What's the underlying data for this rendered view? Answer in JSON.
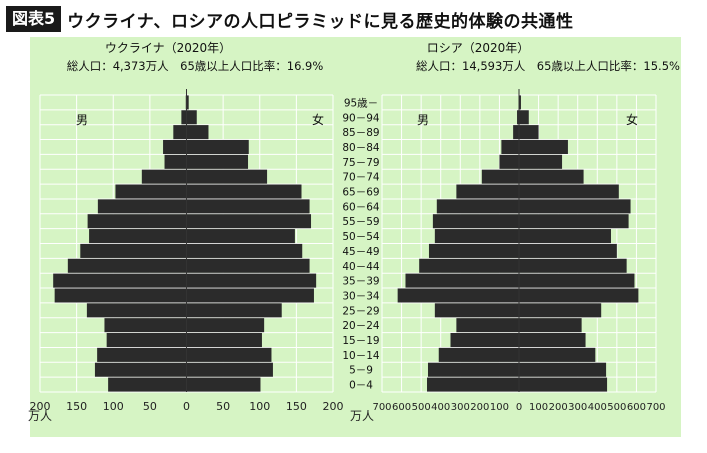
{
  "figure": {
    "badge": "図表5",
    "title": "ウクライナ、ロシアの人口ピラミッドに見る歴史的体験の共通性"
  },
  "colors": {
    "background_panel": "#d6f4c4",
    "bar": "#2b2b2b",
    "grid": "#ffffff",
    "badge_bg": "#1a1a1a"
  },
  "chart_data": [
    {
      "type": "bar",
      "orientation": "horizontal-pyramid",
      "title": "ウクライナ（2020年）",
      "subtitle": "総人口：4,373万人　65歳以上人口比率：16.9%",
      "xlabel": "万人",
      "male_label": "男",
      "female_label": "女",
      "xlim": [
        -200,
        200
      ],
      "xticks": [
        "200",
        "150",
        "100",
        "50",
        "0",
        "50",
        "100",
        "150",
        "200"
      ],
      "grid": true,
      "categories": [
        "0－4",
        "5－9",
        "10－14",
        "15－19",
        "20－24",
        "25－29",
        "30－34",
        "35－39",
        "40－44",
        "45－49",
        "50－54",
        "55－59",
        "60－64",
        "65－69",
        "70－74",
        "75－79",
        "80－84",
        "85－89",
        "90－94",
        "95歳－"
      ],
      "series": [
        {
          "name": "男",
          "values": [
            107,
            125,
            122,
            109,
            112,
            136,
            180,
            182,
            162,
            145,
            133,
            135,
            121,
            97,
            61,
            30,
            32,
            18,
            7,
            1
          ]
        },
        {
          "name": "女",
          "values": [
            101,
            118,
            116,
            103,
            106,
            130,
            174,
            177,
            168,
            158,
            148,
            170,
            168,
            157,
            110,
            84,
            85,
            30,
            14,
            3
          ]
        }
      ]
    },
    {
      "type": "bar",
      "orientation": "horizontal-pyramid",
      "title": "ロシア（2020年）",
      "subtitle": "総人口：14,593万人　65歳以上人口比率：15.5%",
      "xlabel": "万人",
      "male_label": "男",
      "female_label": "女",
      "xlim": [
        -700,
        700
      ],
      "xticks": [
        "700",
        "600",
        "500",
        "400",
        "300",
        "200",
        "100",
        "0",
        "100",
        "200",
        "300",
        "400",
        "500",
        "600",
        "700"
      ],
      "grid": true,
      "categories": [
        "0－4",
        "5－9",
        "10－14",
        "15－19",
        "20－24",
        "25－29",
        "30－34",
        "35－39",
        "40－44",
        "45－49",
        "50－54",
        "55－59",
        "60－64",
        "65－69",
        "70－74",
        "75－79",
        "80－84",
        "85－89",
        "90－94",
        "95歳－"
      ],
      "series": [
        {
          "name": "男",
          "values": [
            470,
            465,
            410,
            350,
            320,
            430,
            620,
            580,
            510,
            460,
            430,
            440,
            420,
            320,
            190,
            100,
            90,
            30,
            10,
            2
          ]
        },
        {
          "name": "女",
          "values": [
            450,
            445,
            390,
            340,
            320,
            420,
            610,
            590,
            550,
            500,
            470,
            560,
            570,
            510,
            330,
            220,
            250,
            100,
            50,
            10
          ]
        }
      ]
    }
  ]
}
